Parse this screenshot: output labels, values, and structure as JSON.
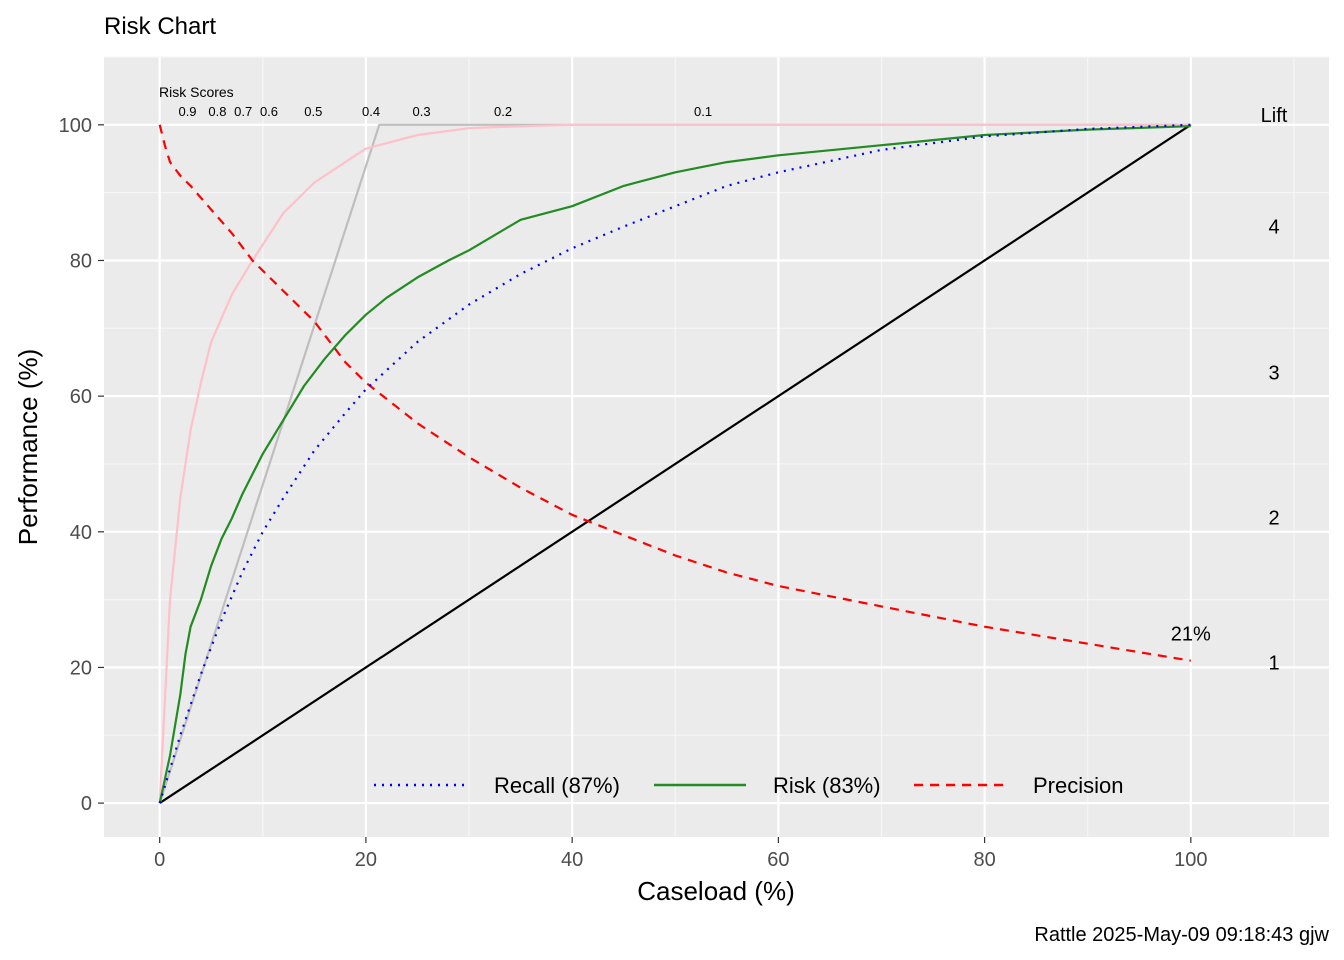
{
  "chart_data": {
    "type": "line",
    "title": "Risk Chart",
    "xlabel": "Caseload (%)",
    "ylabel": "Performance (%)",
    "caption": "Rattle 2025-May-09 09:18:43 gjw",
    "xlim": [
      -5.4,
      113.4
    ],
    "ylim": [
      -5,
      110
    ],
    "x_ticks": [
      0,
      20,
      40,
      60,
      80,
      100
    ],
    "y_ticks": [
      0,
      20,
      40,
      60,
      80,
      100
    ],
    "grid": true,
    "background_color": "#ebebeb",
    "risk_scores_title": "Risk Scores",
    "risk_scores": [
      {
        "label": "0.9",
        "x": 2.7
      },
      {
        "label": "0.8",
        "x": 5.6
      },
      {
        "label": "0.7",
        "x": 8.1
      },
      {
        "label": "0.6",
        "x": 10.6
      },
      {
        "label": "0.5",
        "x": 14.9
      },
      {
        "label": "0.4",
        "x": 20.5
      },
      {
        "label": "0.3",
        "x": 25.4
      },
      {
        "label": "0.2",
        "x": 33.3
      },
      {
        "label": "0.1",
        "x": 52.7
      }
    ],
    "lift_title": "Lift",
    "lift_labels": [
      {
        "label": "4",
        "y": 85
      },
      {
        "label": "3",
        "y": 63.5
      },
      {
        "label": "2",
        "y": 42.1
      },
      {
        "label": "1",
        "y": 20.7
      }
    ],
    "annotation": {
      "label": "21%",
      "x": 100,
      "y": 25
    },
    "legend_position": "bottom-inside",
    "series": [
      {
        "name": "Recall (87%)",
        "color": "#0000ff",
        "style": "dotted",
        "x": [
          0,
          2,
          4,
          6,
          8,
          10,
          12,
          15,
          18,
          20,
          25,
          30,
          35,
          40,
          45,
          50,
          55,
          60,
          70,
          80,
          90,
          100
        ],
        "y": [
          0,
          10,
          19,
          27,
          34,
          40,
          45,
          52,
          57.5,
          61,
          68,
          73.5,
          78,
          81.8,
          85,
          88,
          91,
          93,
          96.3,
          98.3,
          99.4,
          100
        ]
      },
      {
        "name": "Risk (83%)",
        "color": "#228b22",
        "style": "solid",
        "x": [
          0,
          1,
          2,
          2.5,
          3,
          4,
          5,
          6,
          7,
          8,
          9,
          10,
          12,
          14,
          16,
          18,
          20,
          22,
          25,
          28,
          30,
          35,
          40,
          45,
          50,
          55,
          60,
          70,
          80,
          90,
          100
        ],
        "y": [
          0,
          7,
          16,
          22,
          26,
          30,
          35,
          39,
          42,
          45.5,
          48.5,
          51.5,
          56.5,
          61.5,
          65.5,
          69,
          72,
          74.5,
          77.5,
          80,
          81.5,
          86,
          88,
          91,
          93,
          94.5,
          95.5,
          97,
          98.5,
          99.3,
          99.8
        ]
      },
      {
        "name": "Precision",
        "color": "#ff0000",
        "style": "dashed",
        "x": [
          0,
          0.5,
          1,
          2,
          3,
          5,
          7,
          9,
          12,
          15,
          18,
          20,
          25,
          30,
          35,
          40,
          45,
          50,
          55,
          60,
          70,
          80,
          90,
          100
        ],
        "y": [
          100,
          97,
          94.5,
          92.5,
          91,
          87.5,
          84,
          80,
          75.5,
          71,
          65,
          62,
          56,
          51,
          46.5,
          42.5,
          39.5,
          36.5,
          34,
          32,
          29,
          26,
          23.5,
          21
        ]
      },
      {
        "name": "",
        "color": "#ffc0cb",
        "style": "solid",
        "x": [
          0,
          1,
          2,
          3,
          4,
          5,
          7,
          9,
          12,
          15,
          20,
          25,
          30,
          35,
          40,
          50,
          100
        ],
        "y": [
          0,
          30,
          45,
          55,
          62,
          68,
          75,
          80,
          87,
          91.5,
          96.5,
          98.5,
          99.5,
          99.8,
          100,
          100,
          100
        ]
      },
      {
        "name": "",
        "color": "#bebebe",
        "style": "solid",
        "x": [
          0,
          21.3,
          100
        ],
        "y": [
          0,
          100,
          100
        ]
      },
      {
        "name": "",
        "color": "#000000",
        "style": "solid",
        "x": [
          0,
          100
        ],
        "y": [
          0,
          100
        ]
      }
    ]
  }
}
